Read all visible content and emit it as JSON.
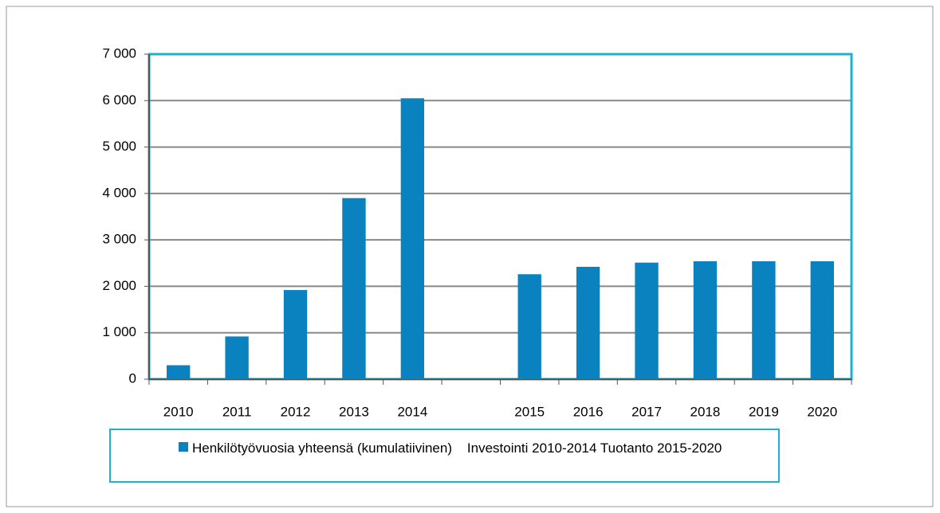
{
  "chart_data": {
    "type": "bar",
    "categories": [
      "2010",
      "2011",
      "2012",
      "2013",
      "2014",
      null,
      "2015",
      "2016",
      "2017",
      "2018",
      "2019",
      "2020"
    ],
    "series": [
      {
        "name": "Henkilötyövuosia yhteensä (kumulatiivinen)    Investointi 2010-2014 Tuotanto 2015-2020",
        "color": "#0a82c0",
        "values": [
          300,
          920,
          1920,
          3900,
          6050,
          null,
          2260,
          2420,
          2510,
          2540,
          2540,
          2540
        ]
      }
    ],
    "ylim": [
      0,
      7000
    ],
    "yticks": [
      0,
      {
        "value": 1000,
        "label": "1 000"
      },
      {
        "value": 2000,
        "label": "2 000"
      },
      {
        "value": 3000,
        "label": "3 000"
      },
      {
        "value": 4000,
        "label": "4 000"
      },
      {
        "value": 5000,
        "label": "5 000"
      },
      {
        "value": 6000,
        "label": "6 000"
      },
      {
        "value": 7000,
        "label": "7 000"
      }
    ],
    "grid": true,
    "legend": "bottom"
  }
}
